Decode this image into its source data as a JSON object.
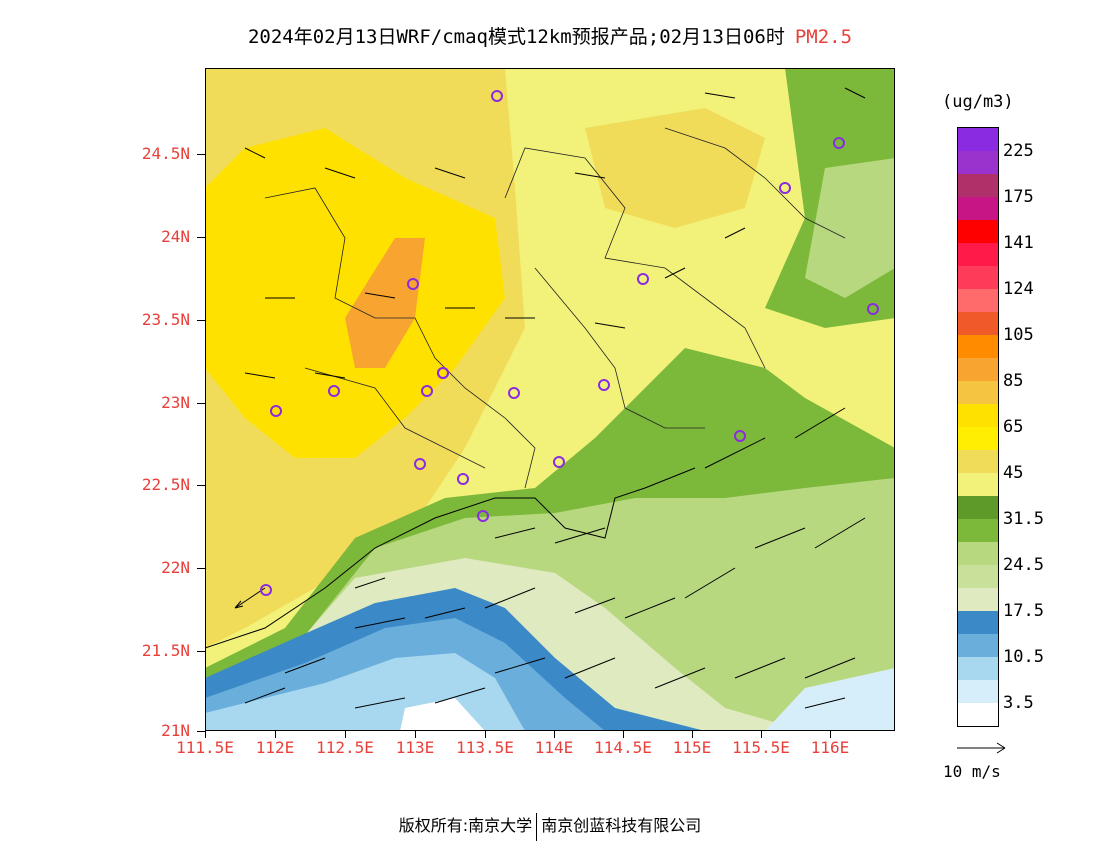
{
  "title": {
    "main": "2024年02月13日WRF/cmaq模式12km预报产品;02月13日06时",
    "variable": "PM2.5"
  },
  "axes": {
    "lat_ticks": [
      "24.5N",
      "24N",
      "23.5N",
      "23N",
      "22.5N",
      "22N",
      "21.5N",
      "21N"
    ],
    "lon_ticks": [
      "111.5E",
      "112E",
      "112.5E",
      "113E",
      "113.5E",
      "114E",
      "114.5E",
      "115E",
      "115.5E",
      "116E"
    ]
  },
  "colorbar": {
    "unit": "(ug/m3)",
    "colors": [
      "#8a2be2",
      "#9a32cd",
      "#b0306a",
      "#c71585",
      "#ff0000",
      "#ff1a4a",
      "#ff3b5a",
      "#ff6a6a",
      "#f05a28",
      "#ff8c00",
      "#f7a530",
      "#f5c542",
      "#ffe100",
      "#ffee00",
      "#f1dc5a",
      "#f2f27a",
      "#5e9a2a",
      "#7cb83a",
      "#b8d880",
      "#c8e09a",
      "#e0eac0",
      "#3b89c6",
      "#6aaedc",
      "#a8d8f0",
      "#d6eefa",
      "#ffffff"
    ],
    "labels": [
      "225",
      "175",
      "141",
      "124",
      "105",
      "85",
      "65",
      "45",
      "31.5",
      "24.5",
      "17.5",
      "10.5",
      "3.5"
    ]
  },
  "wind_reference": {
    "label": "10 m/s"
  },
  "stations_count": 19,
  "footer": {
    "copyright": "版权所有:南京大学",
    "company": "南京创蓝科技有限公司"
  }
}
